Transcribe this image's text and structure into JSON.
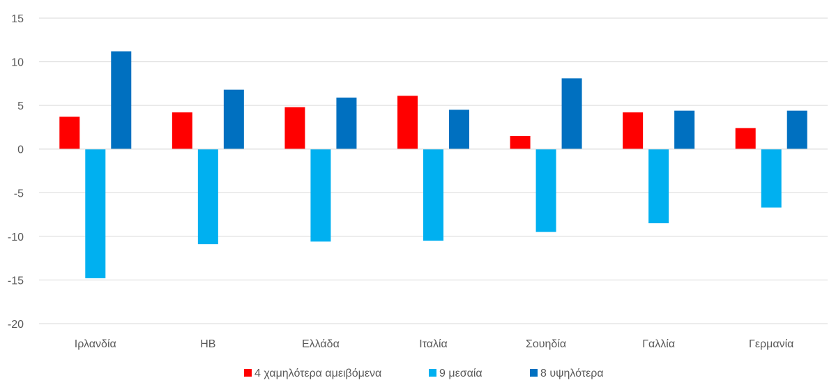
{
  "chart_data": {
    "type": "bar",
    "title": "",
    "xlabel": "",
    "ylabel": "",
    "ylim": [
      -20,
      15
    ],
    "yticks": [
      15,
      10,
      5,
      0,
      -5,
      -10,
      -15,
      -20
    ],
    "grid": true,
    "legend_position": "bottom",
    "categories": [
      "Ιρλανδία",
      "ΗΒ",
      "Ελλάδα",
      "Ιταλία",
      "Σουηδία",
      "Γαλλία",
      "Γερμανία"
    ],
    "series": [
      {
        "name": "4 χαμηλότερα αμειβόμενα",
        "color": "#ff0000",
        "values": [
          3.7,
          4.2,
          4.8,
          6.1,
          1.5,
          4.2,
          2.4
        ]
      },
      {
        "name": "9 μεσαία",
        "color": "#00b0f0",
        "values": [
          -14.8,
          -10.9,
          -10.6,
          -10.5,
          -9.5,
          -8.5,
          -6.7
        ]
      },
      {
        "name": "8 υψηλότερα",
        "color": "#0070c0",
        "values": [
          11.2,
          6.8,
          5.9,
          4.5,
          8.1,
          4.4,
          4.4
        ]
      }
    ]
  }
}
